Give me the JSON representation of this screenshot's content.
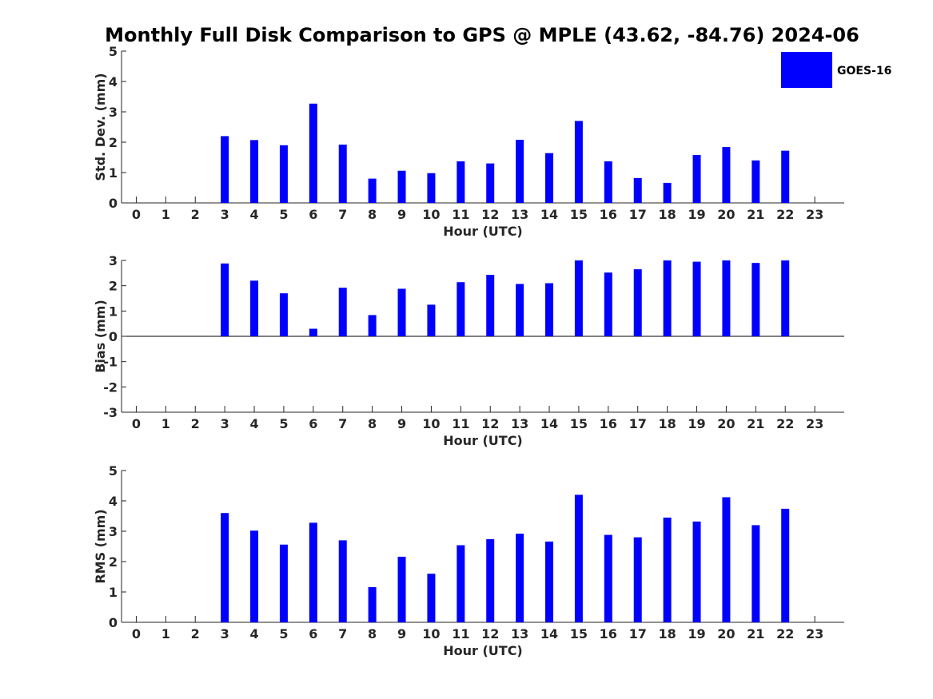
{
  "chart_data": {
    "title": "Monthly Full Disk Comparison to GPS @ MPLE (43.62, -84.76) 2024-06",
    "legend": {
      "label": "GOES-16",
      "color": "#0000ff",
      "placement": "top-right"
    },
    "bar_color": "#0000ff",
    "panels": [
      {
        "type": "bar",
        "categories": [
          "0",
          "1",
          "2",
          "3",
          "4",
          "5",
          "6",
          "7",
          "8",
          "9",
          "10",
          "11",
          "12",
          "13",
          "14",
          "15",
          "16",
          "17",
          "18",
          "19",
          "20",
          "21",
          "22",
          "23"
        ],
        "series": [
          {
            "name": "GOES-16",
            "values": [
              null,
              null,
              null,
              2.2,
              2.07,
              1.9,
              3.27,
              1.92,
              0.8,
              1.06,
              0.98,
              1.37,
              1.3,
              2.08,
              1.64,
              2.7,
              1.37,
              0.82,
              0.66,
              1.58,
              1.84,
              1.4,
              1.72,
              null
            ]
          }
        ],
        "xlabel": "Hour (UTC)",
        "ylabel": "Std. Dev. (mm)",
        "ylim": [
          0,
          5
        ],
        "yticks": [
          "0",
          "1",
          "2",
          "3",
          "4",
          "5"
        ],
        "grid": false
      },
      {
        "type": "bar",
        "categories": [
          "0",
          "1",
          "2",
          "3",
          "4",
          "5",
          "6",
          "7",
          "8",
          "9",
          "10",
          "11",
          "12",
          "13",
          "14",
          "15",
          "16",
          "17",
          "18",
          "19",
          "20",
          "21",
          "22",
          "23"
        ],
        "series": [
          {
            "name": "GOES-16",
            "values": [
              null,
              null,
              null,
              2.88,
              2.2,
              1.7,
              0.3,
              1.92,
              0.84,
              1.88,
              1.25,
              2.14,
              2.43,
              2.07,
              2.1,
              3.0,
              2.52,
              2.65,
              3.0,
              2.95,
              3.0,
              2.9,
              3.0,
              null
            ]
          }
        ],
        "xlabel": "Hour (UTC)",
        "ylabel": "Bias (mm)",
        "ylim": [
          -3,
          3
        ],
        "yticks": [
          "-3",
          "-2",
          "-1",
          "0",
          "1",
          "2",
          "3"
        ],
        "grid": false
      },
      {
        "type": "bar",
        "categories": [
          "0",
          "1",
          "2",
          "3",
          "4",
          "5",
          "6",
          "7",
          "8",
          "9",
          "10",
          "11",
          "12",
          "13",
          "14",
          "15",
          "16",
          "17",
          "18",
          "19",
          "20",
          "21",
          "22",
          "23"
        ],
        "series": [
          {
            "name": "GOES-16",
            "values": [
              null,
              null,
              null,
              3.6,
              3.02,
              2.56,
              3.28,
              2.7,
              1.16,
              2.16,
              1.6,
              2.54,
              2.74,
              2.92,
              2.66,
              4.2,
              2.88,
              2.8,
              3.45,
              3.32,
              4.12,
              3.2,
              3.74,
              null
            ]
          }
        ],
        "xlabel": "Hour (UTC)",
        "ylabel": "RMS (mm)",
        "ylim": [
          0,
          5
        ],
        "yticks": [
          "0",
          "1",
          "2",
          "3",
          "4",
          "5"
        ],
        "grid": false
      }
    ]
  }
}
